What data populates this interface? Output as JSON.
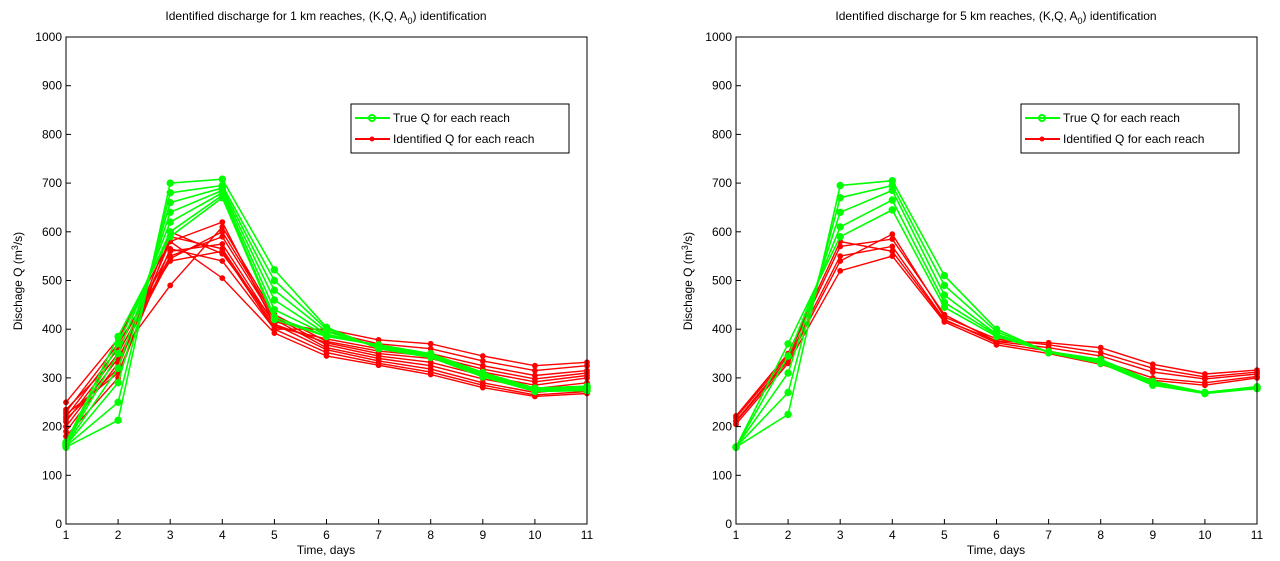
{
  "chart_data": [
    {
      "type": "line",
      "title_parts": {
        "pre": "Identified discharge for  1 km reaches, (K,Q, A",
        "sub": "0",
        "post": ") identification"
      },
      "xlabel": "Time, days",
      "ylabel_parts": {
        "pre": "Dischage Q (m",
        "sup": "3",
        "post": "/s)"
      },
      "xlim": [
        1,
        11
      ],
      "ylim": [
        0,
        1000
      ],
      "xticks": [
        "1",
        "2",
        "3",
        "4",
        "5",
        "6",
        "7",
        "8",
        "9",
        "10",
        "11"
      ],
      "yticks": [
        "0",
        "100",
        "200",
        "300",
        "400",
        "500",
        "600",
        "700",
        "800",
        "900",
        "1000"
      ],
      "grid": false,
      "legend_position": "upper-right",
      "legend": {
        "true_label": "True Q for each reach",
        "identified_label": "Identified Q for each reach"
      },
      "colors": {
        "true": "#00ff00",
        "identified": "#ff0000"
      },
      "x": [
        1,
        2,
        3,
        4,
        5,
        6,
        7,
        8,
        9,
        10,
        11
      ],
      "true_series": [
        {
          "values": [
            158,
            213,
            700,
            708,
            522,
            404,
            360,
            342,
            302,
            272,
            274
          ]
        },
        {
          "values": [
            160,
            250,
            680,
            695,
            500,
            400,
            362,
            345,
            305,
            275,
            276
          ]
        },
        {
          "values": [
            162,
            290,
            660,
            690,
            480,
            395,
            364,
            346,
            307,
            276,
            278
          ]
        },
        {
          "values": [
            163,
            320,
            640,
            685,
            460,
            390,
            365,
            347,
            308,
            277,
            280
          ]
        },
        {
          "values": [
            165,
            350,
            620,
            680,
            440,
            388,
            366,
            348,
            309,
            278,
            281
          ]
        },
        {
          "values": [
            166,
            370,
            600,
            675,
            425,
            386,
            367,
            349,
            310,
            278,
            282
          ]
        },
        {
          "values": [
            168,
            385,
            590,
            670,
            420,
            385,
            368,
            350,
            311,
            279,
            283
          ]
        }
      ],
      "identified_series": [
        {
          "values": [
            250,
            380,
            580,
            505,
            392,
            345,
            326,
            307,
            280,
            262,
            268
          ]
        },
        {
          "values": [
            230,
            370,
            540,
            560,
            400,
            352,
            330,
            312,
            285,
            265,
            272
          ]
        },
        {
          "values": [
            220,
            360,
            560,
            575,
            410,
            358,
            335,
            318,
            290,
            270,
            280
          ]
        },
        {
          "values": [
            210,
            350,
            550,
            590,
            420,
            362,
            340,
            325,
            298,
            278,
            290
          ]
        },
        {
          "values": [
            200,
            340,
            545,
            600,
            425,
            368,
            345,
            332,
            305,
            285,
            300
          ]
        },
        {
          "values": [
            190,
            330,
            580,
            620,
            410,
            372,
            350,
            340,
            312,
            292,
            305
          ]
        },
        {
          "values": [
            235,
            345,
            490,
            610,
            430,
            375,
            355,
            345,
            318,
            298,
            310
          ]
        },
        {
          "values": [
            180,
            300,
            590,
            565,
            405,
            380,
            360,
            350,
            325,
            305,
            315
          ]
        },
        {
          "values": [
            215,
            320,
            600,
            555,
            415,
            395,
            370,
            360,
            335,
            315,
            325
          ]
        },
        {
          "values": [
            225,
            310,
            565,
            540,
            400,
            400,
            378,
            370,
            345,
            325,
            332
          ]
        }
      ]
    },
    {
      "type": "line",
      "title_parts": {
        "pre": "Identified discharge for  5 km reaches, (K,Q, A",
        "sub": "0",
        "post": ") identification"
      },
      "xlabel": "Time, days",
      "ylabel_parts": {
        "pre": "Dischage Q (m",
        "sup": "3",
        "post": "/s)"
      },
      "xlim": [
        1,
        11
      ],
      "ylim": [
        0,
        1000
      ],
      "xticks": [
        "1",
        "2",
        "3",
        "4",
        "5",
        "6",
        "7",
        "8",
        "9",
        "10",
        "11"
      ],
      "yticks": [
        "0",
        "100",
        "200",
        "300",
        "400",
        "500",
        "600",
        "700",
        "800",
        "900",
        "1000"
      ],
      "grid": false,
      "legend_position": "upper-right",
      "legend": {
        "true_label": "True Q for each reach",
        "identified_label": "Identified Q for each reach"
      },
      "colors": {
        "true": "#00ff00",
        "identified": "#ff0000"
      },
      "x": [
        1,
        2,
        3,
        4,
        5,
        6,
        7,
        8,
        9,
        10,
        11
      ],
      "true_series": [
        {
          "values": [
            158,
            225,
            695,
            705,
            510,
            400,
            352,
            330,
            285,
            268,
            278
          ]
        },
        {
          "values": [
            158,
            270,
            670,
            695,
            490,
            395,
            352,
            332,
            287,
            268,
            279
          ]
        },
        {
          "values": [
            158,
            310,
            640,
            685,
            470,
            390,
            353,
            334,
            289,
            269,
            280
          ]
        },
        {
          "values": [
            158,
            345,
            610,
            665,
            455,
            388,
            353,
            336,
            291,
            270,
            281
          ]
        },
        {
          "values": [
            158,
            370,
            590,
            645,
            445,
            385,
            354,
            338,
            293,
            270,
            282
          ]
        }
      ],
      "identified_series": [
        {
          "values": [
            205,
            330,
            520,
            550,
            415,
            368,
            350,
            328,
            295,
            285,
            300
          ]
        },
        {
          "values": [
            212,
            340,
            550,
            570,
            420,
            372,
            355,
            335,
            300,
            290,
            303
          ]
        },
        {
          "values": [
            218,
            345,
            570,
            585,
            430,
            375,
            362,
            345,
            312,
            298,
            308
          ]
        },
        {
          "values": [
            210,
            335,
            540,
            595,
            425,
            380,
            368,
            352,
            320,
            302,
            312
          ]
        },
        {
          "values": [
            222,
            350,
            580,
            560,
            418,
            376,
            372,
            362,
            328,
            308,
            316
          ]
        }
      ]
    }
  ]
}
